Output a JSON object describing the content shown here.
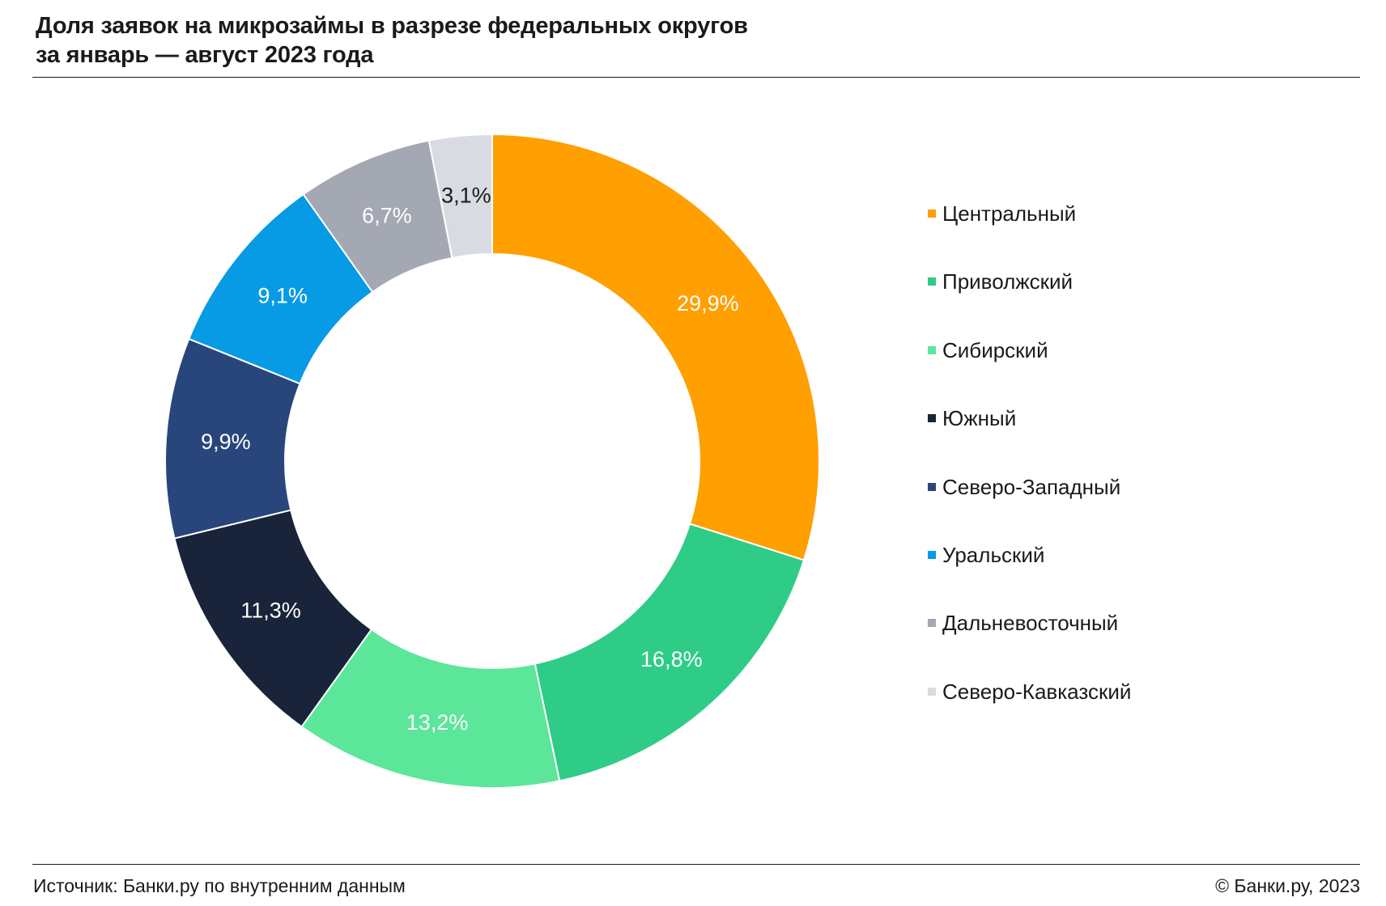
{
  "header": {
    "title_line1": "Доля заявок на микрозаймы в разрезе федеральных округов",
    "title_line2": "за январь — август 2023 года"
  },
  "footer": {
    "source": "Источник: Банки.ру по внутренним данным",
    "copyright": "© Банки.ру, 2023"
  },
  "chart_data": {
    "type": "pie",
    "subtype": "donut",
    "title": "Доля заявок на микрозаймы в разрезе федеральных округов за январь — август 2023 года",
    "legend_position": "right",
    "slices": [
      {
        "name": "Центральный",
        "value": 29.9,
        "label": "29,9%",
        "color": "#FF9F00",
        "label_color": "#ffffff"
      },
      {
        "name": "Приволжский",
        "value": 16.8,
        "label": "16,8%",
        "color": "#2ECC87",
        "label_color": "#ffffff"
      },
      {
        "name": "Сибирский",
        "value": 13.2,
        "label": "13,2%",
        "color": "#5BE69A",
        "label_color": "#ffffff"
      },
      {
        "name": "Южный",
        "value": 11.3,
        "label": "11,3%",
        "color": "#192339",
        "label_color": "#ffffff"
      },
      {
        "name": "Северо-Западный",
        "value": 9.9,
        "label": "9,9%",
        "color": "#28467C",
        "label_color": "#ffffff"
      },
      {
        "name": "Уральский",
        "value": 9.1,
        "label": "9,1%",
        "color": "#069BE4",
        "label_color": "#ffffff"
      },
      {
        "name": "Дальневосточный",
        "value": 6.7,
        "label": "6,7%",
        "color": "#A4A8B3",
        "label_color": "#ffffff"
      },
      {
        "name": "Северо-Кавказский",
        "value": 3.1,
        "label": "3,1%",
        "color": "#D8DBE1",
        "label_color": "#1a1a1a"
      }
    ]
  }
}
